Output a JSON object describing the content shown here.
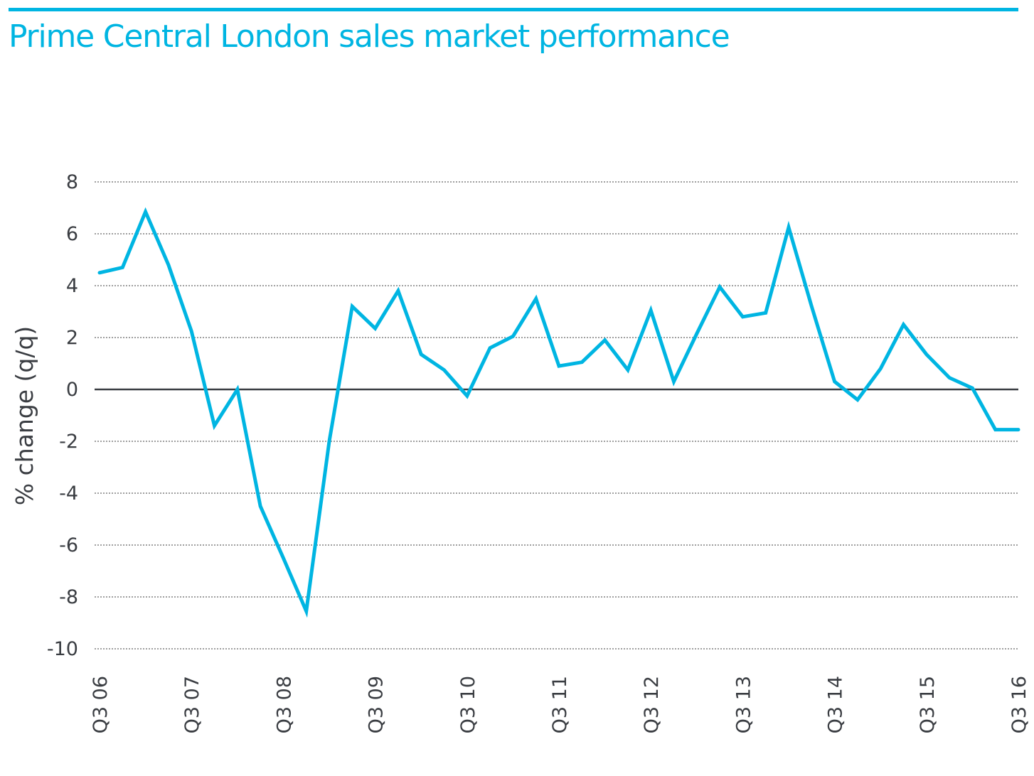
{
  "colors": {
    "accent": "#00b5e2",
    "axis_text": "#3a3d42",
    "zero_line": "#3a3d42",
    "gridline": "#666666"
  },
  "chart_data": {
    "type": "line",
    "title": "Prime Central London sales market performance",
    "xlabel": "",
    "ylabel": "% change (q/q)",
    "ylim": [
      -10,
      8
    ],
    "yticks": [
      8,
      6,
      4,
      2,
      0,
      -2,
      -4,
      -6,
      -8,
      -10
    ],
    "ytick_labels": [
      "8",
      "6",
      "4",
      "2",
      "0",
      "-2",
      "-4",
      "-6",
      "-8",
      "-10"
    ],
    "grid": "horizontal dotted",
    "legend": "none",
    "x": [
      "Q3 06",
      "Q4 06",
      "Q1 07",
      "Q2 07",
      "Q3 07",
      "Q4 07",
      "Q1 08",
      "Q2 08",
      "Q3 08",
      "Q4 08",
      "Q1 09",
      "Q2 09",
      "Q3 09",
      "Q4 09",
      "Q1 10",
      "Q2 10",
      "Q3 10",
      "Q4 10",
      "Q1 11",
      "Q2 11",
      "Q3 11",
      "Q4 11",
      "Q1 12",
      "Q2 12",
      "Q3 12",
      "Q4 12",
      "Q1 13",
      "Q2 13",
      "Q3 13",
      "Q4 13",
      "Q1 14",
      "Q2 14",
      "Q3 14",
      "Q4 14",
      "Q1 15",
      "Q2 15",
      "Q3 15",
      "Q4 15",
      "Q1 16",
      "Q2 16",
      "Q3 16"
    ],
    "xtick_labels": [
      "Q3 06",
      "Q3 07",
      "Q3 08",
      "Q3 09",
      "Q3 10",
      "Q3 11",
      "Q3 12",
      "Q3 13",
      "Q3 14",
      "Q3 15",
      "Q3 16"
    ],
    "xtick_step": 4,
    "series": [
      {
        "name": "Prime Central London quarterly change",
        "values": [
          4.5,
          4.7,
          6.85,
          4.8,
          2.25,
          -1.4,
          0.0,
          -4.5,
          -6.5,
          -8.55,
          -2.0,
          3.2,
          2.35,
          3.8,
          1.35,
          0.75,
          -0.25,
          1.6,
          2.05,
          3.5,
          0.9,
          1.05,
          1.9,
          0.75,
          3.05,
          0.3,
          2.15,
          3.95,
          2.8,
          2.95,
          6.25,
          3.2,
          0.3,
          -0.4,
          0.8,
          2.5,
          1.35,
          0.45,
          0.05,
          -1.55,
          -1.55
        ]
      }
    ]
  }
}
